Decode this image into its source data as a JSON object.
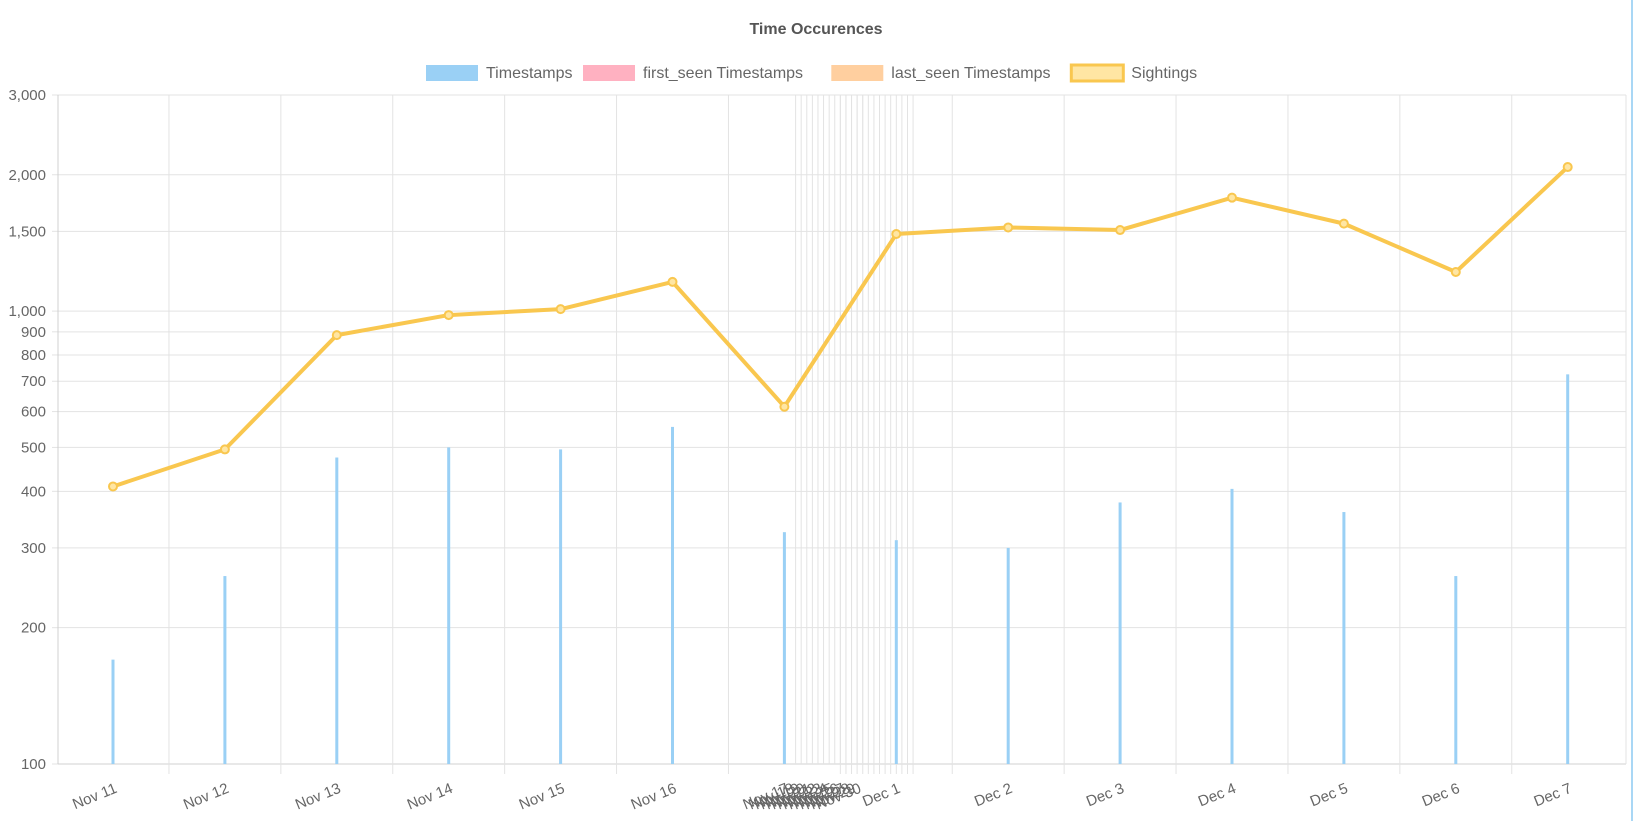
{
  "chart_data": {
    "type": "bar",
    "title": "Time Occurences",
    "legend": {
      "position": "top",
      "entries": [
        {
          "label": "Timestamps",
          "color": "#9ad0f5",
          "border": "#9ad0f5"
        },
        {
          "label": "first_seen Timestamps",
          "color": "#ffb1c1",
          "border": "#ffb1c1"
        },
        {
          "label": "last_seen Timestamps",
          "color": "#ffcf9f",
          "border": "#ffcf9f"
        },
        {
          "label": "Sightings",
          "color": "#ffe6a3",
          "border": "#f9c74f"
        }
      ]
    },
    "y_axis": {
      "scale": "log",
      "min": 100,
      "max": 3000,
      "ticks": [
        {
          "value": 100,
          "label": "100"
        },
        {
          "value": 200,
          "label": "200"
        },
        {
          "value": 300,
          "label": "300"
        },
        {
          "value": 400,
          "label": "400"
        },
        {
          "value": 500,
          "label": "500"
        },
        {
          "value": 600,
          "label": "600"
        },
        {
          "value": 700,
          "label": "700"
        },
        {
          "value": 800,
          "label": "800"
        },
        {
          "value": 900,
          "label": "900"
        },
        {
          "value": 1000,
          "label": "1,000"
        },
        {
          "value": 1500,
          "label": "1,500"
        },
        {
          "value": 2000,
          "label": "2,000"
        },
        {
          "value": 3000,
          "label": "3,000"
        }
      ]
    },
    "x_axis": {
      "type": "time",
      "labels": [
        "Nov 11",
        "Nov 12",
        "Nov 13",
        "Nov 14",
        "Nov 15",
        "Nov 16",
        "Nov 17",
        "Nov 18",
        "Nov 19",
        "Nov 20",
        "Nov 21",
        "Nov 22",
        "Nov 23",
        "Nov 24",
        "Nov 25",
        "Nov 26",
        "Nov 27",
        "Nov 28",
        "Nov 29",
        "Nov 30",
        "Dec 1",
        "Dec 2",
        "Dec 3",
        "Dec 4",
        "Dec 5",
        "Dec 6",
        "Dec 7"
      ],
      "label_day_offsets": [
        0,
        1,
        2,
        3,
        4,
        5,
        6,
        6.05,
        6.1,
        6.15,
        6.2,
        6.25,
        6.3,
        6.35,
        6.4,
        6.45,
        6.5,
        6.55,
        6.6,
        6.65,
        7,
        8,
        9,
        10,
        11,
        12,
        13
      ]
    },
    "series": [
      {
        "name": "Timestamps",
        "type": "bar",
        "color": "#9ad0f5",
        "values": [
          {
            "x": "Nov 11",
            "y": 170
          },
          {
            "x": "Nov 12",
            "y": 260
          },
          {
            "x": "Nov 13",
            "y": 475
          },
          {
            "x": "Nov 14",
            "y": 500
          },
          {
            "x": "Nov 15",
            "y": 495
          },
          {
            "x": "Nov 16",
            "y": 555
          },
          {
            "x": "Nov 17",
            "y": 325
          },
          {
            "x": "Dec 1",
            "y": 312
          },
          {
            "x": "Dec 2",
            "y": 300
          },
          {
            "x": "Dec 3",
            "y": 378
          },
          {
            "x": "Dec 4",
            "y": 405
          },
          {
            "x": "Dec 5",
            "y": 360
          },
          {
            "x": "Dec 6",
            "y": 260
          },
          {
            "x": "Dec 7",
            "y": 725
          }
        ]
      },
      {
        "name": "Sightings",
        "type": "line",
        "color": "#f9c74f",
        "values": [
          {
            "x": "Nov 11",
            "y": 410
          },
          {
            "x": "Nov 12",
            "y": 495
          },
          {
            "x": "Nov 13",
            "y": 885
          },
          {
            "x": "Nov 14",
            "y": 980
          },
          {
            "x": "Nov 15",
            "y": 1010
          },
          {
            "x": "Nov 16",
            "y": 1160
          },
          {
            "x": "Nov 17",
            "y": 615
          },
          {
            "x": "Dec 1",
            "y": 1480
          },
          {
            "x": "Dec 2",
            "y": 1530
          },
          {
            "x": "Dec 3",
            "y": 1510
          },
          {
            "x": "Dec 4",
            "y": 1780
          },
          {
            "x": "Dec 5",
            "y": 1560
          },
          {
            "x": "Dec 6",
            "y": 1220
          },
          {
            "x": "Dec 7",
            "y": 2080
          }
        ]
      }
    ],
    "grid": true
  }
}
